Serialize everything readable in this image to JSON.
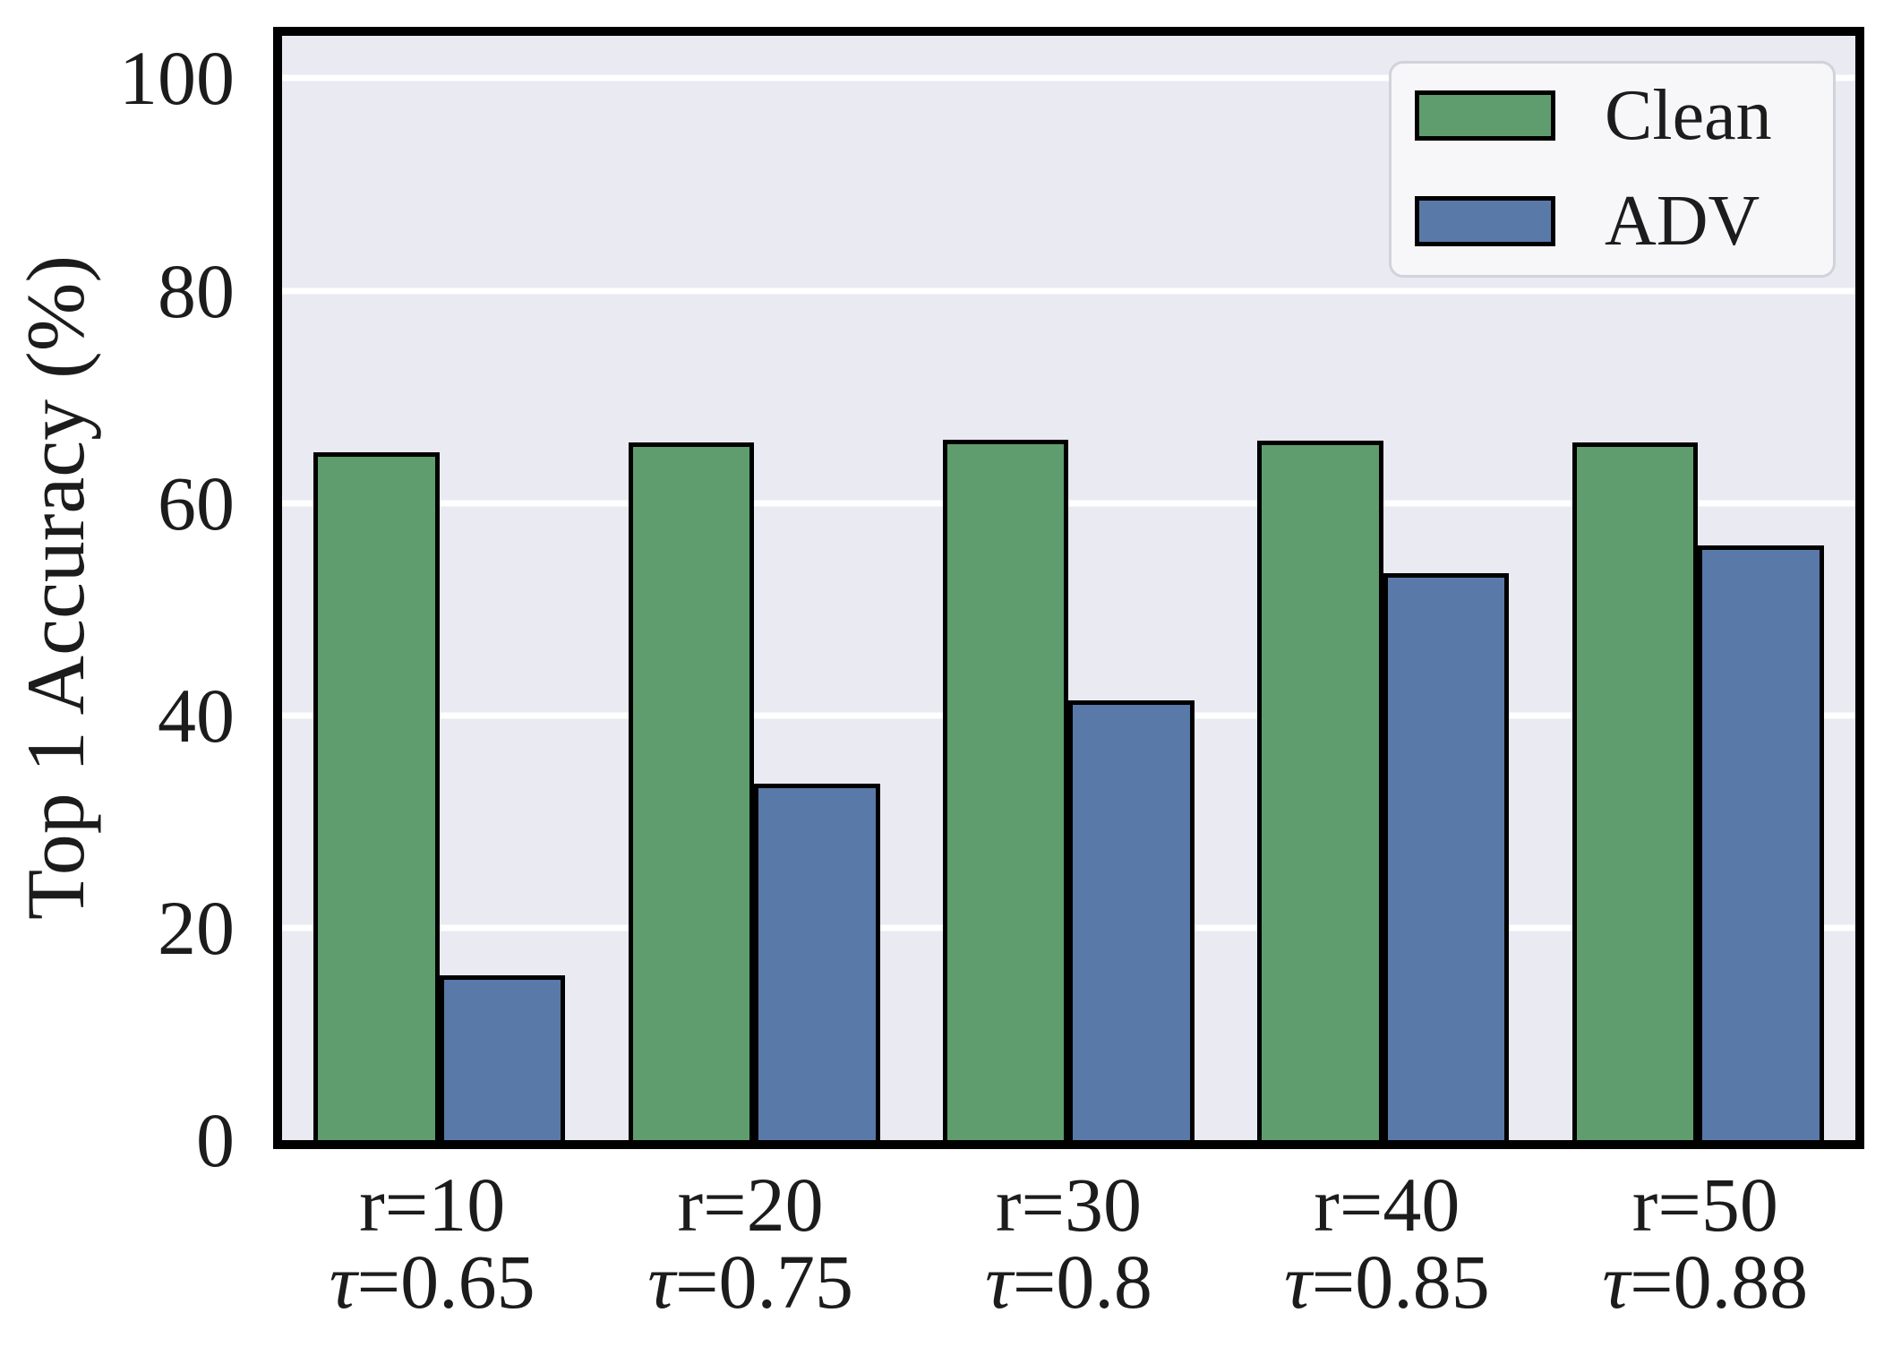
{
  "figure": {
    "background": "#ffffff"
  },
  "axes": {
    "background": "#eaeaf2",
    "grid_color": "#ffffff",
    "spine_color": "#000000",
    "text_color": "#1c1c1c",
    "legend_background": "#f7f7fa",
    "legend_border": "#d2d2da"
  },
  "chart_data": {
    "type": "bar",
    "title": "",
    "xlabel": "",
    "ylabel": "Top 1 Accuracy (%)",
    "ylim": [
      0,
      104
    ],
    "yticks": [
      0,
      20,
      40,
      60,
      80,
      100
    ],
    "grid": "horizontal",
    "legend_position": "upper right",
    "categories": [
      {
        "line1": "r=10",
        "line2": "τ=0.65"
      },
      {
        "line1": "r=20",
        "line2": "τ=0.75"
      },
      {
        "line1": "r=30",
        "line2": "τ=0.8"
      },
      {
        "line1": "r=40",
        "line2": "τ=0.85"
      },
      {
        "line1": "r=50",
        "line2": "τ=0.88"
      }
    ],
    "series": [
      {
        "name": "Clean",
        "color": "#5f9d6e",
        "edge_color": "#000000",
        "values": [
          64.8,
          65.7,
          66.0,
          65.9,
          65.7
        ]
      },
      {
        "name": "ADV",
        "color": "#5979a8",
        "edge_color": "#000000",
        "values": [
          15.5,
          33.6,
          41.4,
          53.4,
          56.0
        ]
      }
    ]
  }
}
